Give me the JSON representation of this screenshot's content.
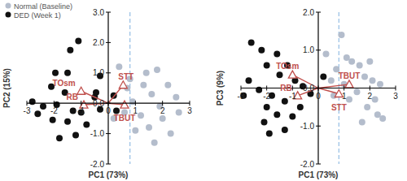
{
  "chart_data": [
    {
      "type": "scatter",
      "xlabel": "PC1 (73%)",
      "ylabel": "PC2 (15%)",
      "xlim": [
        -3,
        3
      ],
      "ylim": [
        -2,
        3
      ],
      "xticks": [
        -3,
        -2,
        -1,
        0,
        1,
        2,
        3
      ],
      "yticks": [
        {
          "value": -2,
          "label": "-2.0"
        },
        {
          "value": -1,
          "label": "-1.0"
        },
        {
          "value": 0,
          "label": "0.0"
        },
        {
          "value": 1,
          "label": "1.0"
        },
        {
          "value": 2,
          "label": "2.0"
        },
        {
          "value": 3,
          "label": "3.0"
        }
      ],
      "legend": "top-left",
      "reference_x": 0.8,
      "series": [
        {
          "name": "Normal (Baseline)",
          "color": "#b4bdcc",
          "marker": "circle",
          "x": [
            0.4,
            1.8,
            2.2,
            1.3,
            0.7,
            1.6,
            2.5,
            0.9,
            1.9,
            1.2,
            2.0,
            1.5,
            2.3,
            1.0,
            0.6,
            2.6,
            1.7,
            0.8,
            0.2,
            1.4
          ],
          "values": [
            1.2,
            1.1,
            0.6,
            0.6,
            0.5,
            0.3,
            0.2,
            0.05,
            -0.1,
            -0.4,
            -0.5,
            -0.8,
            -1.0,
            -0.9,
            -0.3,
            -0.3,
            -1.3,
            0.8,
            -0.5,
            1.0
          ]
        },
        {
          "name": "DED (Week 1)",
          "color": "#111111",
          "marker": "circle",
          "x": [
            -1.1,
            -1.4,
            -1.95,
            -1.5,
            -2.1,
            -1.6,
            -0.3,
            -0.45,
            -2.8,
            -2.4,
            -1.9,
            -2.6,
            -1.3,
            -1.0,
            -0.3,
            0.2,
            -2.05,
            -1.5,
            -0.8,
            -1.2,
            -1.8,
            0.3,
            -0.5
          ],
          "values": [
            2.05,
            1.75,
            1.0,
            1.0,
            0.55,
            0.35,
            0.9,
            0.35,
            0.05,
            -0.1,
            -0.05,
            -0.35,
            -0.25,
            -0.3,
            -0.2,
            0.25,
            -0.55,
            -0.6,
            -0.7,
            -1.05,
            -1.15,
            -0.25,
            0.2
          ]
        }
      ],
      "loadings": {
        "color": "#c0504d",
        "marker": "triangle",
        "labels": [
          "TOsm",
          "RB",
          "STT",
          "TBUT"
        ],
        "x": [
          -1.0,
          -0.9,
          0.55,
          0.6
        ],
        "values": [
          0.4,
          -0.05,
          0.6,
          -0.05
        ]
      }
    },
    {
      "type": "scatter",
      "xlabel": "PC1 (73%)",
      "ylabel": "PC3 (9%)",
      "xlim": [
        -3,
        3
      ],
      "ylim": [
        -2,
        2
      ],
      "xticks": [
        -3,
        -2,
        -1,
        0,
        1,
        2,
        3
      ],
      "yticks": [
        {
          "value": -2,
          "label": "-2.0"
        },
        {
          "value": -1,
          "label": "-1.0"
        },
        {
          "value": 0,
          "label": "0.0"
        },
        {
          "value": 1,
          "label": "1.0"
        },
        {
          "value": 2,
          "label": "2.0"
        }
      ],
      "reference_x": 0.8,
      "series": [
        {
          "color": "#b4bdcc",
          "marker": "circle",
          "x": [
            0.9,
            1.1,
            1.3,
            0.7,
            1.6,
            2.0,
            0.5,
            1.8,
            2.4,
            1.5,
            2.2,
            1.9,
            2.3,
            2.5,
            1.2,
            0.6,
            1.7,
            2.1,
            0.3,
            1.0
          ],
          "values": [
            1.4,
            0.8,
            0.7,
            0.5,
            0.6,
            0.7,
            0.2,
            0.3,
            0.1,
            -0.1,
            -0.3,
            -0.5,
            -0.7,
            -0.8,
            -0.3,
            -0.2,
            -0.9,
            0.2,
            0.9,
            0.1
          ]
        },
        {
          "color": "#111111",
          "marker": "circle",
          "x": [
            -2.6,
            -2.2,
            -1.6,
            -1.2,
            -2.0,
            -2.7,
            -1.5,
            -0.9,
            -0.6,
            -2.3,
            -1.8,
            -2.9,
            -1.3,
            -0.3,
            -2.0,
            -1.6,
            -1.0,
            -2.1,
            -1.3,
            -0.7,
            -1.9,
            0.2
          ],
          "values": [
            1.2,
            1.0,
            0.9,
            0.6,
            0.6,
            0.2,
            0.35,
            0.2,
            0.05,
            -0.05,
            -0.2,
            -0.2,
            -0.35,
            -0.15,
            -0.5,
            -0.7,
            -0.75,
            -0.9,
            -1.1,
            -0.5,
            -1.2,
            0.3
          ]
        }
      ],
      "loadings": {
        "color": "#c0504d",
        "marker": "triangle",
        "labels": [
          "TOsm",
          "RB",
          "STT",
          "TBUT"
        ],
        "x": [
          -1.0,
          -0.8,
          0.8,
          1.2
        ],
        "values": [
          0.35,
          -0.2,
          -0.15,
          0.1
        ]
      }
    }
  ]
}
